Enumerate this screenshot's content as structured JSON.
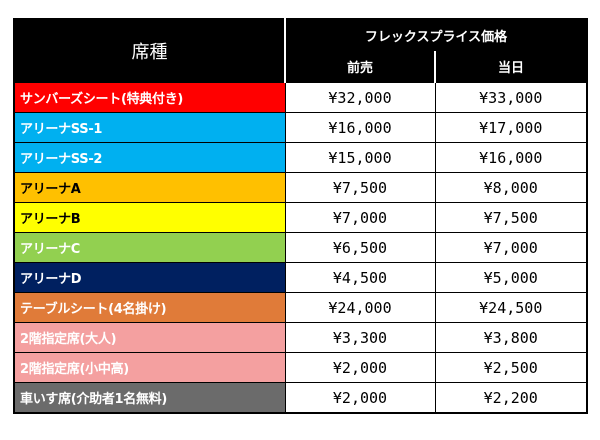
{
  "header": {
    "seat_label": "席種",
    "flex_label": "フレックスプライス価格",
    "presale_label": "前売",
    "dayof_label": "当日"
  },
  "rows": [
    {
      "seat": "サンバーズシート(特典付き)",
      "presale": "¥32,000",
      "dayof": "¥33,000",
      "bg": "#ff0000",
      "fg": "#ffffff"
    },
    {
      "seat": "アリーナSS-1",
      "presale": "¥16,000",
      "dayof": "¥17,000",
      "bg": "#00b0f0",
      "fg": "#ffffff"
    },
    {
      "seat": "アリーナSS-2",
      "presale": "¥15,000",
      "dayof": "¥16,000",
      "bg": "#00b0f0",
      "fg": "#ffffff"
    },
    {
      "seat": "アリーナA",
      "presale": "¥7,500",
      "dayof": "¥8,000",
      "bg": "#ffc000",
      "fg": "#000000"
    },
    {
      "seat": "アリーナB",
      "presale": "¥7,000",
      "dayof": "¥7,500",
      "bg": "#ffff00",
      "fg": "#000000"
    },
    {
      "seat": "アリーナC",
      "presale": "¥6,500",
      "dayof": "¥7,000",
      "bg": "#92d050",
      "fg": "#ffffff"
    },
    {
      "seat": "アリーナD",
      "presale": "¥4,500",
      "dayof": "¥5,000",
      "bg": "#002060",
      "fg": "#ffffff"
    },
    {
      "seat": "テーブルシート(4名掛け)",
      "presale": "¥24,000",
      "dayof": "¥24,500",
      "bg": "#e07b39",
      "fg": "#ffffff"
    },
    {
      "seat": "2階指定席(大人)",
      "presale": "¥3,300",
      "dayof": "¥3,800",
      "bg": "#f4a0a0",
      "fg": "#ffffff"
    },
    {
      "seat": "2階指定席(小中高)",
      "presale": "¥2,000",
      "dayof": "¥2,500",
      "bg": "#f4a0a0",
      "fg": "#ffffff"
    },
    {
      "seat": "車いす席(介助者1名無料)",
      "presale": "¥2,000",
      "dayof": "¥2,200",
      "bg": "#6b6b6b",
      "fg": "#ffffff"
    }
  ]
}
